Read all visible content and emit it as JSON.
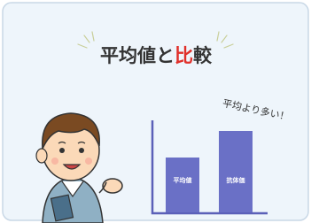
{
  "header": {
    "title": {
      "parts": [
        "平均値と",
        "比",
        "較"
      ]
    }
  },
  "illustration": {
    "bars": [
      {
        "label": "平均値"
      },
      {
        "label": "抗体価"
      }
    ],
    "annotation": "平均より多い！"
  }
}
